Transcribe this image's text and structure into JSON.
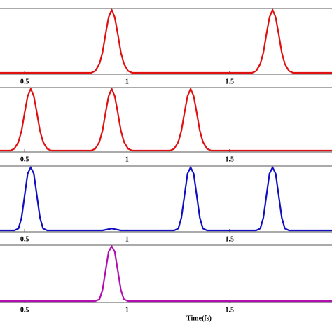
{
  "chart_data": [
    {
      "type": "line",
      "xlim": [
        0.38,
        2.0
      ],
      "ylim": [
        0,
        1.02
      ],
      "xticks": [
        0.5,
        1,
        1.5
      ],
      "x": [
        0.38,
        0.825,
        0.845,
        0.865,
        0.88,
        0.895,
        0.91,
        0.925,
        0.94,
        0.955,
        0.97,
        0.985,
        1.005,
        1.025,
        1.61,
        1.63,
        1.65,
        1.665,
        1.68,
        1.695,
        1.71,
        1.725,
        1.74,
        1.755,
        1.77,
        1.79,
        1.81,
        2.0
      ],
      "series": [
        {
          "color": "#e01010",
          "values": [
            0,
            0,
            0.03,
            0.14,
            0.32,
            0.61,
            0.88,
            1,
            0.88,
            0.61,
            0.32,
            0.14,
            0.03,
            0,
            0,
            0.03,
            0.14,
            0.32,
            0.61,
            0.88,
            1,
            0.88,
            0.61,
            0.32,
            0.14,
            0.03,
            0,
            0
          ]
        }
      ]
    },
    {
      "type": "line",
      "xlim": [
        0.38,
        2.0
      ],
      "ylim": [
        0,
        1.02
      ],
      "xticks": [
        0.5,
        1,
        1.5
      ],
      "x": [
        0.38,
        0.43,
        0.45,
        0.47,
        0.485,
        0.5,
        0.515,
        0.53,
        0.545,
        0.56,
        0.575,
        0.59,
        0.61,
        0.63,
        0.825,
        0.845,
        0.865,
        0.88,
        0.895,
        0.91,
        0.925,
        0.94,
        0.955,
        0.97,
        0.985,
        1.005,
        1.025,
        1.21,
        1.23,
        1.25,
        1.265,
        1.28,
        1.295,
        1.31,
        1.325,
        1.34,
        1.355,
        1.37,
        1.39,
        1.41,
        2.0
      ],
      "series": [
        {
          "color": "#e01010",
          "values": [
            0,
            0,
            0.03,
            0.14,
            0.32,
            0.61,
            0.88,
            1,
            0.88,
            0.61,
            0.32,
            0.14,
            0.03,
            0,
            0,
            0.03,
            0.14,
            0.32,
            0.61,
            0.88,
            1,
            0.88,
            0.61,
            0.32,
            0.14,
            0.03,
            0,
            0,
            0.03,
            0.14,
            0.32,
            0.61,
            0.88,
            1,
            0.88,
            0.61,
            0.32,
            0.14,
            0.03,
            0,
            0
          ]
        }
      ]
    },
    {
      "type": "line",
      "xlim": [
        0.38,
        2.0
      ],
      "ylim": [
        0,
        1.02
      ],
      "xticks": [
        0.5,
        1,
        1.5
      ],
      "x": [
        0.38,
        0.45,
        0.47,
        0.485,
        0.5,
        0.515,
        0.53,
        0.545,
        0.56,
        0.575,
        0.59,
        0.61,
        0.88,
        0.925,
        0.97,
        1.23,
        1.25,
        1.265,
        1.28,
        1.295,
        1.31,
        1.325,
        1.34,
        1.355,
        1.37,
        1.39,
        1.63,
        1.65,
        1.665,
        1.68,
        1.695,
        1.71,
        1.725,
        1.74,
        1.755,
        1.77,
        1.79,
        2.0
      ],
      "series": [
        {
          "color": "#1010c0",
          "values": [
            0,
            0,
            0.03,
            0.2,
            0.55,
            0.9,
            1,
            0.9,
            0.55,
            0.2,
            0.03,
            0,
            0,
            0.03,
            0,
            0,
            0.03,
            0.2,
            0.55,
            0.9,
            1,
            0.9,
            0.55,
            0.2,
            0.03,
            0,
            0,
            0.03,
            0.2,
            0.55,
            0.9,
            1,
            0.9,
            0.55,
            0.2,
            0.03,
            0,
            0
          ]
        }
      ]
    },
    {
      "type": "line",
      "xlim": [
        0.38,
        2.0
      ],
      "ylim": [
        0,
        1.02
      ],
      "xticks": [
        0.5,
        1,
        1.5
      ],
      "xlabel": "Time(fs)",
      "x": [
        0.38,
        0.845,
        0.865,
        0.88,
        0.895,
        0.91,
        0.925,
        0.94,
        0.955,
        0.97,
        0.985,
        1.005,
        2.0
      ],
      "series": [
        {
          "color": "#b010b0",
          "values": [
            0,
            0,
            0.03,
            0.2,
            0.55,
            0.9,
            1,
            0.9,
            0.55,
            0.2,
            0.03,
            0,
            0
          ]
        }
      ]
    }
  ]
}
